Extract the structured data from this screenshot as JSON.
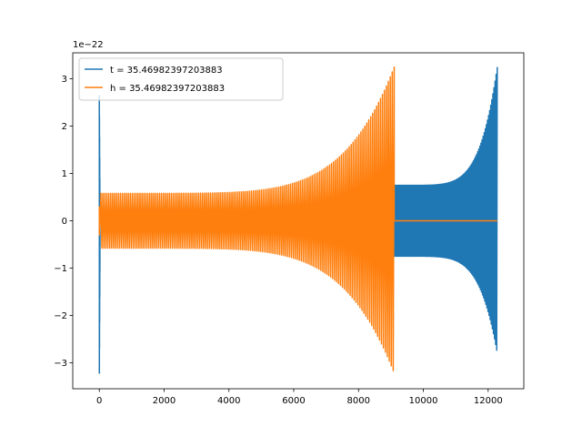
{
  "chart_data": {
    "type": "line",
    "title": "",
    "xlabel": "",
    "ylabel": "",
    "y_offset_label": "1e−22",
    "xlim": [
      -820,
      13100
    ],
    "ylim": [
      -3.55,
      3.55
    ],
    "x_ticks": [
      0,
      2000,
      4000,
      6000,
      8000,
      10000,
      12000
    ],
    "x_tick_labels": [
      "0",
      "2000",
      "4000",
      "6000",
      "8000",
      "10000",
      "12000"
    ],
    "y_ticks": [
      -3,
      -2,
      -1,
      0,
      1,
      2,
      3
    ],
    "y_tick_labels": [
      "−3",
      "−2",
      "−1",
      "0",
      "1",
      "2",
      "3"
    ],
    "grid": false,
    "legend_position": "upper-left",
    "series": [
      {
        "name": "t = 35.46982397203883",
        "color": "#1f77b4",
        "segments": [
          {
            "kind": "spike",
            "x": 0,
            "min": -3.22,
            "max": 2.65
          },
          {
            "kind": "quiet",
            "x_start": 0,
            "x_end": 9100,
            "amplitude": 0.0
          },
          {
            "kind": "chirp",
            "x_start": 9100,
            "x_end": 12280,
            "amp_start": 0.75,
            "amp_end": 3.25,
            "amp_end_neg": -2.8,
            "cycles": 95
          }
        ]
      },
      {
        "name": "h = 35.46982397203883",
        "color": "#ff7f0e",
        "segments": [
          {
            "kind": "spike",
            "x": 0,
            "min": -0.3,
            "max": 0.3
          },
          {
            "kind": "chirp",
            "x_start": 50,
            "x_end": 9100,
            "amp_start": 0.58,
            "amp_end": 3.25,
            "amp_end_neg": -3.22,
            "cycles": 150
          },
          {
            "kind": "flat",
            "x_start": 9100,
            "x_end": 12280,
            "value": 0.0
          }
        ]
      }
    ]
  }
}
